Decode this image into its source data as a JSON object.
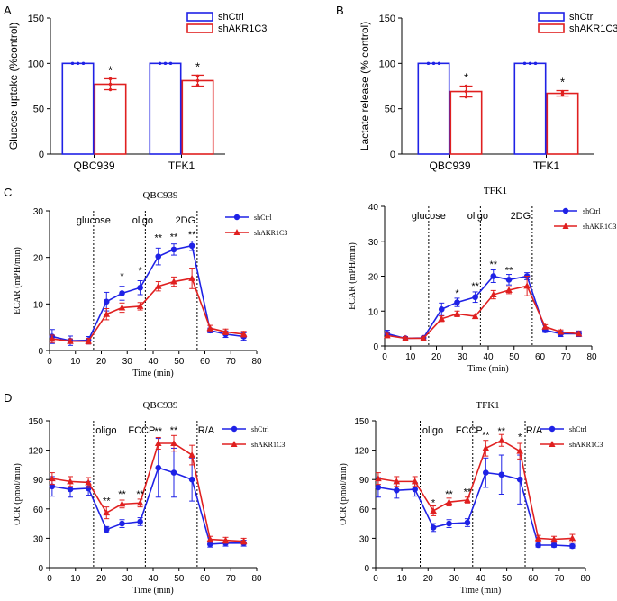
{
  "figure": {
    "panel_letters": [
      "A",
      "B",
      "C",
      "D"
    ]
  },
  "colors": {
    "ctrl": "#1f22e6",
    "ko": "#e02020",
    "axis": "#000000"
  },
  "chart_data": [
    {
      "id": "A",
      "type": "bar",
      "ylabel": "Glucose uptake (%control)",
      "ylim": [
        0,
        150
      ],
      "yticks": [
        0,
        50,
        100,
        150
      ],
      "categories": [
        "QBC939",
        "TFK1"
      ],
      "series": [
        {
          "name": "shCtrl",
          "values": [
            100,
            100
          ],
          "errors": [
            0,
            0
          ],
          "points": [
            [
              100,
              100,
              100
            ],
            [
              100,
              100,
              100
            ]
          ]
        },
        {
          "name": "shAKR1C3",
          "values": [
            77,
            81
          ],
          "errors": [
            6,
            6
          ],
          "points": [
            [
              71,
              77,
              83
            ],
            [
              76,
              81,
              86
            ]
          ]
        }
      ],
      "significance": [
        "*",
        "*"
      ],
      "legend": [
        "shCtrl",
        "shAKR1C3"
      ]
    },
    {
      "id": "B",
      "type": "bar",
      "ylabel": "Lactate release (% control)",
      "ylim": [
        0,
        150
      ],
      "yticks": [
        0,
        50,
        100,
        150
      ],
      "categories": [
        "QBC939",
        "TFK1"
      ],
      "series": [
        {
          "name": "shCtrl",
          "values": [
            100,
            100
          ],
          "errors": [
            0,
            0
          ],
          "points": [
            [
              100,
              100,
              100
            ],
            [
              100,
              100,
              100
            ]
          ]
        },
        {
          "name": "shAKR1C3",
          "values": [
            69,
            67
          ],
          "errors": [
            6,
            3
          ],
          "points": [
            [
              63,
              69,
              75
            ],
            [
              65,
              67,
              69
            ]
          ]
        }
      ],
      "significance": [
        "*",
        "*"
      ],
      "legend": [
        "shCtrl",
        "shAKR1C3"
      ]
    },
    {
      "id": "C1",
      "type": "line",
      "title": "QBC939",
      "xlabel": "Time (min)",
      "ylabel": "ECAR  (mPH/min)",
      "xlim": [
        0,
        80
      ],
      "ylim": [
        0,
        30
      ],
      "xticks": [
        0,
        10,
        20,
        30,
        40,
        50,
        60,
        70,
        80
      ],
      "yticks": [
        0,
        10,
        20,
        30
      ],
      "x": [
        1,
        8,
        15,
        22,
        28,
        35,
        42,
        48,
        55,
        62,
        68,
        75
      ],
      "series": [
        {
          "name": "shCtrl",
          "values": [
            3.0,
            2.1,
            2.2,
            10.5,
            12.3,
            13.5,
            20.2,
            21.7,
            22.5,
            4.3,
            3.5,
            3.0
          ],
          "errors": [
            1.5,
            1.0,
            0.8,
            2.0,
            1.5,
            1.5,
            1.8,
            1.2,
            1.0,
            0.5,
            0.7,
            0.8
          ]
        },
        {
          "name": "shAKR1C3",
          "values": [
            2.5,
            2.0,
            2.0,
            7.8,
            9.2,
            9.5,
            13.8,
            14.8,
            15.5,
            4.8,
            4.0,
            3.5
          ],
          "errors": [
            0.8,
            0.5,
            0.6,
            1.2,
            1.0,
            0.8,
            1.0,
            1.0,
            2.2,
            0.6,
            0.6,
            0.6
          ]
        }
      ],
      "vlines": [
        17,
        37,
        57
      ],
      "annotations": [
        "glucose",
        "oligo",
        "2DG"
      ],
      "stars": [
        {
          "x": 28,
          "y": 15.3,
          "label": "*"
        },
        {
          "x": 35,
          "y": 16.5,
          "label": "*"
        },
        {
          "x": 42,
          "y": 23.5,
          "label": "**"
        },
        {
          "x": 48,
          "y": 23.7,
          "label": "**"
        },
        {
          "x": 55,
          "y": 24.2,
          "label": "**"
        }
      ],
      "legend": [
        "shCtrl",
        "shAKR1C3"
      ]
    },
    {
      "id": "C2",
      "type": "line",
      "title": "TFK1",
      "xlabel": "Time (min)",
      "ylabel": "ECAR  (mPH/min)",
      "xlim": [
        0,
        80
      ],
      "ylim": [
        0,
        40
      ],
      "xticks": [
        0,
        10,
        20,
        30,
        40,
        50,
        60,
        70,
        80
      ],
      "yticks": [
        0,
        10,
        20,
        30,
        40
      ],
      "x": [
        1,
        8,
        15,
        22,
        28,
        35,
        42,
        48,
        55,
        62,
        68,
        75
      ],
      "series": [
        {
          "name": "shCtrl",
          "values": [
            3.5,
            2.2,
            2.3,
            10.5,
            12.5,
            14.0,
            20.0,
            19.0,
            20.0,
            4.5,
            3.5,
            3.5
          ],
          "errors": [
            1.0,
            0.5,
            0.5,
            1.8,
            1.2,
            1.5,
            1.8,
            1.5,
            1.0,
            0.6,
            0.8,
            0.8
          ]
        },
        {
          "name": "shAKR1C3",
          "values": [
            3.0,
            2.2,
            2.2,
            7.8,
            9.2,
            8.5,
            14.7,
            16.0,
            17.2,
            5.5,
            4.0,
            3.5
          ],
          "errors": [
            0.6,
            0.4,
            0.4,
            0.8,
            0.8,
            0.6,
            1.2,
            1.0,
            2.8,
            0.6,
            0.6,
            0.6
          ]
        }
      ],
      "vlines": [
        17,
        37,
        57
      ],
      "annotations": [
        "glucose",
        "oligo",
        "2DG"
      ],
      "stars": [
        {
          "x": 28,
          "y": 14.2,
          "label": "*"
        },
        {
          "x": 35,
          "y": 16.2,
          "label": "**"
        },
        {
          "x": 42,
          "y": 22.5,
          "label": "**"
        },
        {
          "x": 48,
          "y": 20.8,
          "label": "**"
        }
      ],
      "legend": [
        "shCtrl",
        "shAKR1C3"
      ]
    },
    {
      "id": "D1",
      "type": "line",
      "title": "QBC939",
      "xlabel": "Time (min)",
      "ylabel": "OCR  (pmol/min)",
      "xlim": [
        0,
        80
      ],
      "ylim": [
        0,
        150
      ],
      "xticks": [
        0,
        10,
        20,
        30,
        40,
        50,
        60,
        70,
        80
      ],
      "yticks": [
        0,
        30,
        60,
        90,
        120,
        150
      ],
      "x": [
        1,
        8,
        15,
        22,
        28,
        35,
        42,
        48,
        55,
        62,
        68,
        75
      ],
      "series": [
        {
          "name": "shCtrl",
          "values": [
            83,
            80,
            81,
            39,
            45,
            47,
            102,
            97,
            90,
            24,
            25,
            25
          ],
          "errors": [
            10,
            8,
            7,
            3,
            4,
            4,
            30,
            25,
            22,
            3,
            3,
            3
          ]
        },
        {
          "name": "shAKR1C3",
          "values": [
            91,
            88,
            87,
            56,
            65,
            66,
            127,
            127,
            115,
            29,
            28,
            27
          ],
          "errors": [
            6,
            5,
            5,
            6,
            4,
            4,
            6,
            8,
            10,
            3,
            3,
            3
          ]
        }
      ],
      "vlines": [
        17,
        37,
        57
      ],
      "annotations": [
        "oligo",
        "FCCP",
        "R/A"
      ],
      "stars": [
        {
          "x": 22,
          "y": 65,
          "label": "**"
        },
        {
          "x": 28,
          "y": 72,
          "label": "**"
        },
        {
          "x": 35,
          "y": 72,
          "label": "**"
        },
        {
          "x": 42,
          "y": 136,
          "label": "**"
        },
        {
          "x": 48,
          "y": 137,
          "label": "**"
        }
      ],
      "legend": [
        "shCtrl",
        "shAKR1C3"
      ]
    },
    {
      "id": "D2",
      "type": "line",
      "title": "TFK1",
      "xlabel": "Time (min)",
      "ylabel": "OCR  (pmol/min)",
      "xlim": [
        0,
        80
      ],
      "ylim": [
        0,
        150
      ],
      "xticks": [
        0,
        10,
        20,
        30,
        40,
        50,
        60,
        70,
        80
      ],
      "yticks": [
        0,
        30,
        60,
        90,
        120,
        150
      ],
      "x": [
        1,
        8,
        15,
        22,
        28,
        35,
        42,
        48,
        55,
        62,
        68,
        75
      ],
      "series": [
        {
          "name": "shCtrl",
          "values": [
            82,
            79,
            80,
            41,
            45,
            46,
            97,
            95,
            90,
            23,
            23,
            22
          ],
          "errors": [
            10,
            8,
            7,
            4,
            4,
            4,
            15,
            20,
            25,
            2,
            2,
            2
          ]
        },
        {
          "name": "shAKR1C3",
          "values": [
            91,
            88,
            88,
            58,
            67,
            69,
            122,
            130,
            119,
            30,
            29,
            30
          ],
          "errors": [
            6,
            5,
            5,
            5,
            4,
            3,
            8,
            6,
            8,
            3,
            3,
            4
          ]
        }
      ],
      "vlines": [
        17,
        37,
        57
      ],
      "annotations": [
        "oligo",
        "FCCP",
        "R/A"
      ],
      "stars": [
        {
          "x": 22,
          "y": 63,
          "label": "*"
        },
        {
          "x": 28,
          "y": 72,
          "label": "**"
        },
        {
          "x": 35,
          "y": 74,
          "label": "**"
        },
        {
          "x": 42,
          "y": 132,
          "label": "**"
        },
        {
          "x": 48,
          "y": 136,
          "label": "**"
        },
        {
          "x": 55,
          "y": 130,
          "label": "*"
        }
      ],
      "legend": [
        "shCtrl",
        "shAKR1C3"
      ]
    }
  ]
}
